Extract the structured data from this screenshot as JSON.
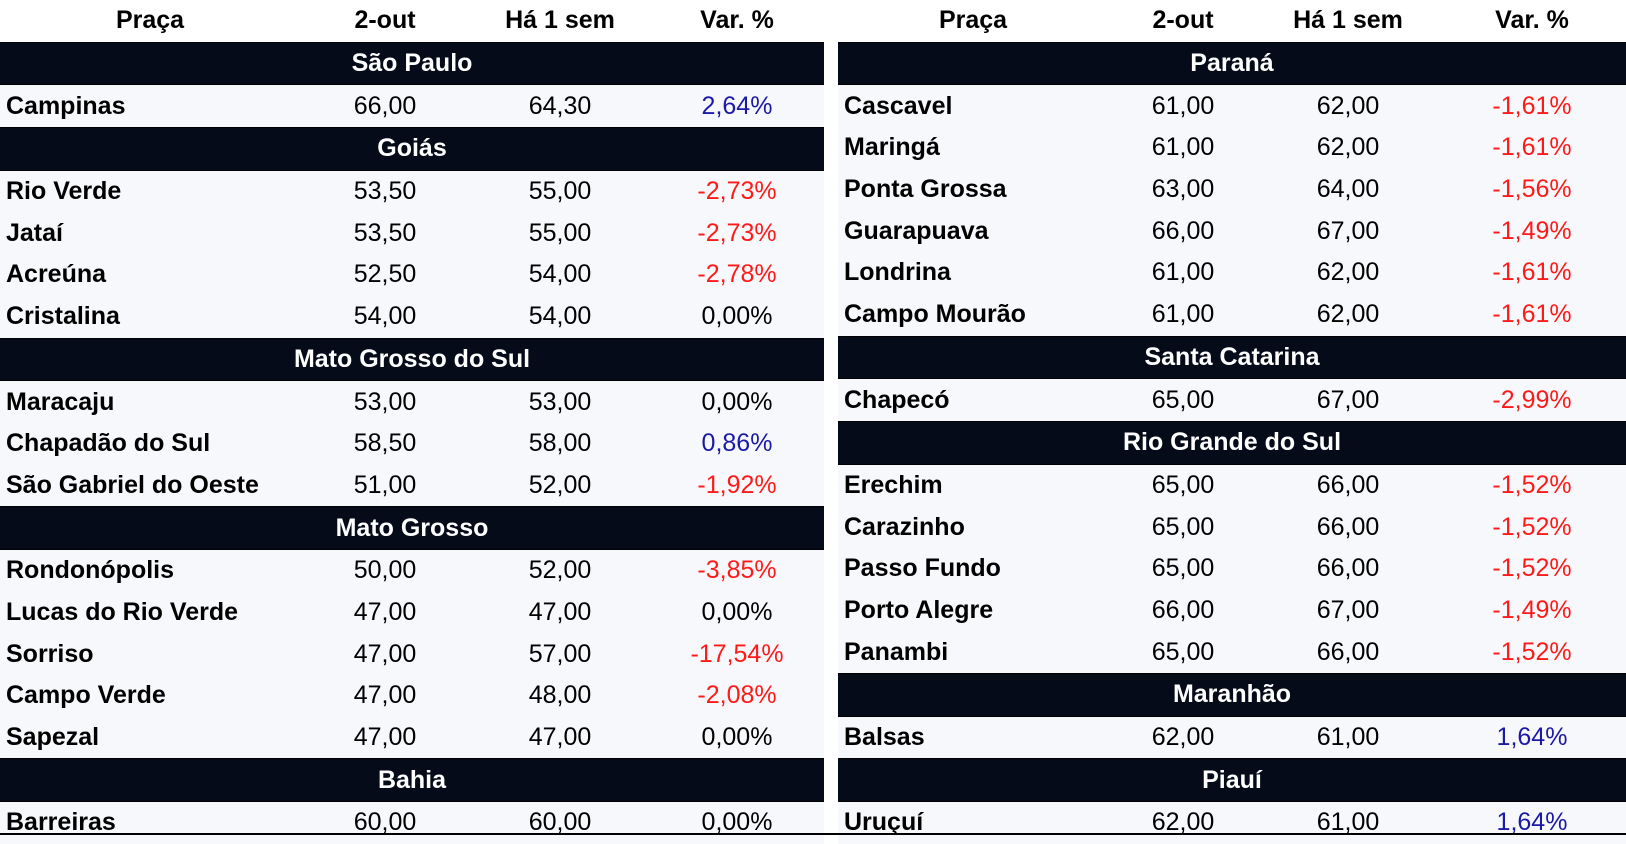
{
  "headers": [
    "Praça",
    "2-out",
    "Há 1 sem",
    "Var. %"
  ],
  "left": {
    "groups": [
      {
        "name": "São Paulo",
        "rows": [
          {
            "city": "Campinas",
            "cur": "66,00",
            "prev": "64,30",
            "var": "2,64%",
            "sign": "pos"
          }
        ]
      },
      {
        "name": "Goiás",
        "rows": [
          {
            "city": "Rio Verde",
            "cur": "53,50",
            "prev": "55,00",
            "var": "-2,73%",
            "sign": "neg"
          },
          {
            "city": "Jataí",
            "cur": "53,50",
            "prev": "55,00",
            "var": "-2,73%",
            "sign": "neg"
          },
          {
            "city": "Acreúna",
            "cur": "52,50",
            "prev": "54,00",
            "var": "-2,78%",
            "sign": "neg"
          },
          {
            "city": "Cristalina",
            "cur": "54,00",
            "prev": "54,00",
            "var": "0,00%",
            "sign": "zero"
          }
        ]
      },
      {
        "name": "Mato Grosso do Sul",
        "rows": [
          {
            "city": "Maracaju",
            "cur": "53,00",
            "prev": "53,00",
            "var": "0,00%",
            "sign": "zero"
          },
          {
            "city": "Chapadão do Sul",
            "cur": "58,50",
            "prev": "58,00",
            "var": "0,86%",
            "sign": "pos"
          },
          {
            "city": "São Gabriel do Oeste",
            "cur": "51,00",
            "prev": "52,00",
            "var": "-1,92%",
            "sign": "neg"
          }
        ]
      },
      {
        "name": "Mato Grosso",
        "rows": [
          {
            "city": "Rondonópolis",
            "cur": "50,00",
            "prev": "52,00",
            "var": "-3,85%",
            "sign": "neg"
          },
          {
            "city": "Lucas do Rio Verde",
            "cur": "47,00",
            "prev": "47,00",
            "var": "0,00%",
            "sign": "zero"
          },
          {
            "city": "Sorriso",
            "cur": "47,00",
            "prev": "57,00",
            "var": "-17,54%",
            "sign": "neg"
          },
          {
            "city": "Campo Verde",
            "cur": "47,00",
            "prev": "48,00",
            "var": "-2,08%",
            "sign": "neg"
          },
          {
            "city": "Sapezal",
            "cur": "47,00",
            "prev": "47,00",
            "var": "0,00%",
            "sign": "zero"
          }
        ]
      },
      {
        "name": "Bahia",
        "rows": [
          {
            "city": "Barreiras",
            "cur": "60,00",
            "prev": "60,00",
            "var": "0,00%",
            "sign": "zero"
          }
        ]
      }
    ]
  },
  "right": {
    "groups": [
      {
        "name": "Paraná",
        "rows": [
          {
            "city": "Cascavel",
            "cur": "61,00",
            "prev": "62,00",
            "var": "-1,61%",
            "sign": "neg"
          },
          {
            "city": "Maringá",
            "cur": "61,00",
            "prev": "62,00",
            "var": "-1,61%",
            "sign": "neg"
          },
          {
            "city": "Ponta Grossa",
            "cur": "63,00",
            "prev": "64,00",
            "var": "-1,56%",
            "sign": "neg"
          },
          {
            "city": "Guarapuava",
            "cur": "66,00",
            "prev": "67,00",
            "var": "-1,49%",
            "sign": "neg"
          },
          {
            "city": "Londrina",
            "cur": "61,00",
            "prev": "62,00",
            "var": "-1,61%",
            "sign": "neg"
          },
          {
            "city": "Campo Mourão",
            "cur": "61,00",
            "prev": "62,00",
            "var": "-1,61%",
            "sign": "neg"
          }
        ]
      },
      {
        "name": "Santa Catarina",
        "rows": [
          {
            "city": "Chapecó",
            "cur": "65,00",
            "prev": "67,00",
            "var": "-2,99%",
            "sign": "neg"
          }
        ]
      },
      {
        "name": "Rio Grande do Sul",
        "rows": [
          {
            "city": "Erechim",
            "cur": "65,00",
            "prev": "66,00",
            "var": "-1,52%",
            "sign": "neg"
          },
          {
            "city": "Carazinho",
            "cur": "65,00",
            "prev": "66,00",
            "var": "-1,52%",
            "sign": "neg"
          },
          {
            "city": "Passo Fundo",
            "cur": "65,00",
            "prev": "66,00",
            "var": "-1,52%",
            "sign": "neg"
          },
          {
            "city": "Porto Alegre",
            "cur": "66,00",
            "prev": "67,00",
            "var": "-1,49%",
            "sign": "neg"
          },
          {
            "city": "Panambi",
            "cur": "65,00",
            "prev": "66,00",
            "var": "-1,52%",
            "sign": "neg"
          }
        ]
      },
      {
        "name": "Maranhão",
        "rows": [
          {
            "city": "Balsas",
            "cur": "62,00",
            "prev": "61,00",
            "var": "1,64%",
            "sign": "pos"
          }
        ]
      },
      {
        "name": "Piauí",
        "rows": [
          {
            "city": "Uruçuí",
            "cur": "62,00",
            "prev": "61,00",
            "var": "1,64%",
            "sign": "pos"
          }
        ]
      }
    ]
  },
  "colors": {
    "group_bg": "#050b19",
    "row_bg": "#f7f8fb",
    "positive": "#1a1aa6",
    "negative": "#ff1a1a"
  }
}
